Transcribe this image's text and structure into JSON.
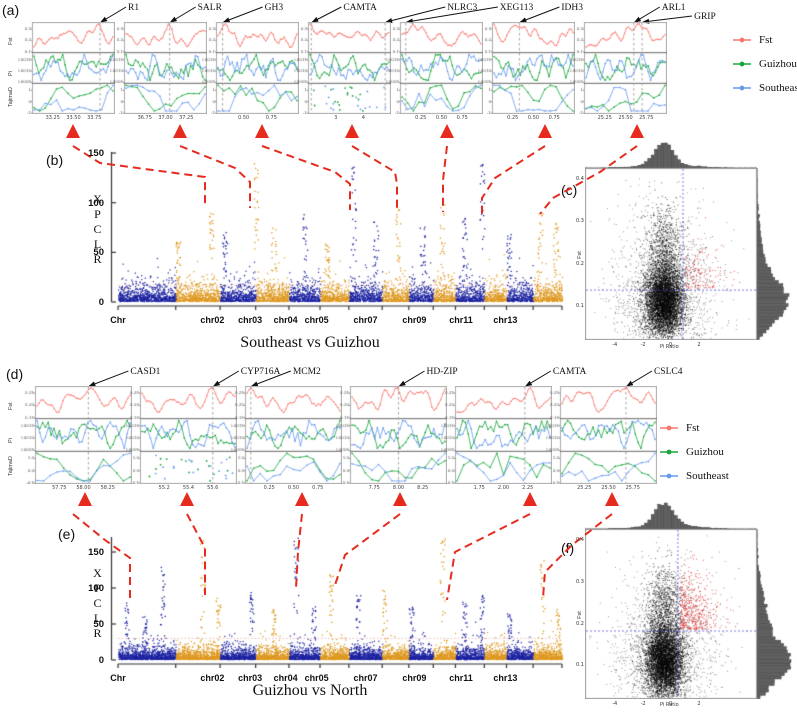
{
  "figure": {
    "colors": {
      "fst_line": "#F8766D",
      "guizhou_line": "#17A63C",
      "southeast_line": "#6699EE",
      "manhattan_navy": "#1C22A0",
      "manhattan_orange": "#DE9820",
      "connector_red": "#E62B1E",
      "threshold_pink": "#F0A8A8",
      "crosshair_blue": "#4141E8",
      "hist_gray": "#606060",
      "gene_dash_gray": "#999999"
    }
  },
  "legend": {
    "items": [
      {
        "label": "Fst",
        "color": "#F8766D"
      },
      {
        "label": "Guizhou",
        "color": "#17A63C"
      },
      {
        "label": "Southeast",
        "color": "#6699EE"
      }
    ]
  },
  "chart_data": [
    {
      "id": "a",
      "panel": "(a)",
      "type": "line",
      "description": "Selective sweep signals: Fst, Pi and TajimaD tracks around candidate genes",
      "track_labels": [
        "Fst",
        "Pi",
        "TajimaD"
      ],
      "series": [
        "Fst",
        "Guizhou",
        "Southeast"
      ],
      "track_ticks": {
        "fst": [
          "0.3",
          "0.2",
          "0.1"
        ],
        "pi": [
          "0.0015",
          "0.0010",
          "0.0005"
        ],
        "taj": [
          "1",
          "0",
          "-1"
        ]
      },
      "plots": [
        {
          "genes": [
            {
              "name": "R1",
              "pos": 0.82,
              "dx": 26
            }
          ],
          "x_ticks": [
            "33.25",
            "33.50",
            "33.75"
          ]
        },
        {
          "genes": [
            {
              "name": "SALR",
              "pos": 0.55,
              "dx": 26
            }
          ],
          "x_ticks": [
            "36.75",
            "37.00",
            "37.25"
          ]
        },
        {
          "genes": [
            {
              "name": "GH3",
              "pos": 0.08,
              "dx": 40
            }
          ],
          "x_ticks": [
            "0.50",
            "0.75"
          ]
        },
        {
          "genes": [
            {
              "name": "CAMTA",
              "pos": 0.04,
              "dx": 30
            },
            {
              "name": "NLRC3",
              "pos": 0.93,
              "dx": 60
            }
          ],
          "x_ticks": [
            "3",
            "4"
          ],
          "scatter_bottom": true
        },
        {
          "genes": [
            {
              "name": "XEG113",
              "pos": 0.07,
              "dx": 92
            }
          ],
          "x_ticks": [
            "0.25",
            "0.50",
            "0.75"
          ]
        },
        {
          "genes": [
            {
              "name": "IDH3",
              "pos": 0.33,
              "dx": 40
            }
          ],
          "x_ticks": [
            "0.25",
            "0.50",
            "0.75"
          ]
        },
        {
          "genes": [
            {
              "name": "ARL1",
              "pos": 0.6,
              "dx": 26
            },
            {
              "name": "GRIP",
              "pos": 0.7,
              "dx": 50,
              "row": 2
            }
          ],
          "x_ticks": [
            "25.25",
            "25.50",
            "25.75"
          ]
        }
      ]
    },
    {
      "id": "b",
      "panel": "(b)",
      "type": "scatter",
      "title": "Southeast vs Guizhou",
      "ylabel": "XPCLR",
      "yticks": [
        0,
        50,
        100,
        150
      ],
      "ylim": [
        0,
        160
      ],
      "threshold": 17,
      "n_chromosomes": 14,
      "x_tick_labels": [
        "Chr",
        "chr02",
        "chr03",
        "chr04",
        "chr05",
        "chr07",
        "chr09",
        "chr11",
        "chr13"
      ],
      "peaks": [
        [
          0.135,
          60
        ],
        [
          0.21,
          95
        ],
        [
          0.24,
          70
        ],
        [
          0.31,
          140
        ],
        [
          0.35,
          75
        ],
        [
          0.42,
          95
        ],
        [
          0.47,
          60
        ],
        [
          0.53,
          140
        ],
        [
          0.58,
          80
        ],
        [
          0.63,
          95
        ],
        [
          0.685,
          75
        ],
        [
          0.73,
          100
        ],
        [
          0.78,
          85
        ],
        [
          0.82,
          140
        ],
        [
          0.88,
          70
        ],
        [
          0.95,
          95
        ],
        [
          0.985,
          80
        ]
      ]
    },
    {
      "id": "c",
      "panel": "(c)",
      "type": "scatter",
      "xlabel": "Pi Ratio",
      "ylabel": "Fst",
      "xticks": [
        "-4",
        "-2",
        "0",
        "2"
      ],
      "yticks": [
        "0.4",
        "0.3",
        "0.2",
        "0.1"
      ],
      "crosshair": {
        "x_frac": 0.57,
        "y_frac": 0.71
      },
      "highlight": "red points: selected region (high Fst, high Pi Ratio)",
      "marginals": "top: Pi Ratio histogram; right: Fst histogram"
    },
    {
      "id": "d",
      "panel": "(d)",
      "type": "line",
      "description": "Selective sweep signals: Fst, Pi and TajimaD tracks around candidate genes",
      "track_labels": [
        "Fst",
        "Pi",
        "TajimaD"
      ],
      "series": [
        "Fst",
        "Guizhou",
        "Southeast"
      ],
      "track_ticks": {
        "fst": [
          "0.25",
          "0.20",
          "0.15"
        ],
        "pi": [
          "0.0015",
          "0.0010",
          "0.0005"
        ],
        "taj": [
          "1.0",
          "0.0",
          "-0.5"
        ]
      },
      "plots": [
        {
          "genes": [
            {
              "name": "CASD1",
              "pos": 0.55,
              "dx": 40
            }
          ],
          "x_ticks": [
            "57.75",
            "58.00",
            "58.25"
          ]
        },
        {
          "genes": [
            {
              "name": "CYP716A",
              "pos": 0.75,
              "dx": 26
            }
          ],
          "x_ticks": [
            "55.2",
            "55.4",
            "55.6"
          ],
          "scatter_bottom": true
        },
        {
          "genes": [
            {
              "name": "MCM2",
              "pos": 0.06,
              "dx": 40
            }
          ],
          "x_ticks": [
            "0.25",
            "0.50",
            "0.75"
          ]
        },
        {
          "genes": [
            {
              "name": "HD-ZIP",
              "pos": 0.5,
              "dx": 26
            }
          ],
          "x_ticks": [
            "7.75",
            "8.00",
            "8.25"
          ]
        },
        {
          "genes": [
            {
              "name": "CAMTA",
              "pos": 0.72,
              "dx": 26
            }
          ],
          "x_ticks": [
            "1.75",
            "2.00",
            "2.25"
          ]
        },
        {
          "genes": [
            {
              "name": "CSLC4",
              "pos": 0.68,
              "dx": 26
            }
          ],
          "x_ticks": [
            "25.25",
            "25.50",
            "25.75"
          ]
        }
      ]
    },
    {
      "id": "e",
      "panel": "(e)",
      "type": "scatter",
      "title": "Guizhou vs North",
      "ylabel": "XPCLR",
      "yticks": [
        0,
        50,
        100,
        150
      ],
      "ylim": [
        0,
        180
      ],
      "threshold": 30,
      "n_chromosomes": 14,
      "x_tick_labels": [
        "Chr",
        "chr02",
        "chr03",
        "chr04",
        "chr05",
        "chr07",
        "chr09",
        "chr11",
        "chr13"
      ],
      "peaks": [
        [
          0.02,
          80
        ],
        [
          0.06,
          60
        ],
        [
          0.1,
          130
        ],
        [
          0.19,
          165
        ],
        [
          0.225,
          90
        ],
        [
          0.3,
          95
        ],
        [
          0.35,
          70
        ],
        [
          0.4,
          175
        ],
        [
          0.44,
          80
        ],
        [
          0.48,
          120
        ],
        [
          0.54,
          90
        ],
        [
          0.6,
          100
        ],
        [
          0.66,
          75
        ],
        [
          0.73,
          170
        ],
        [
          0.78,
          80
        ],
        [
          0.82,
          90
        ],
        [
          0.88,
          65
        ],
        [
          0.955,
          140
        ],
        [
          0.99,
          70
        ]
      ]
    },
    {
      "id": "f",
      "panel": "(f)",
      "type": "scatter",
      "xlabel": "Pi Ratio",
      "ylabel": "Fst",
      "xticks": [
        "-4",
        "-2",
        "0",
        "2"
      ],
      "yticks": [
        "0.4",
        "0.3",
        "0.2",
        "0.1"
      ],
      "crosshair": {
        "x_frac": 0.54,
        "y_frac": 0.6
      },
      "highlight": "red points: selected region (high Fst, high Pi Ratio)",
      "marginals": "top: Pi Ratio histogram; right: Fst histogram"
    }
  ]
}
